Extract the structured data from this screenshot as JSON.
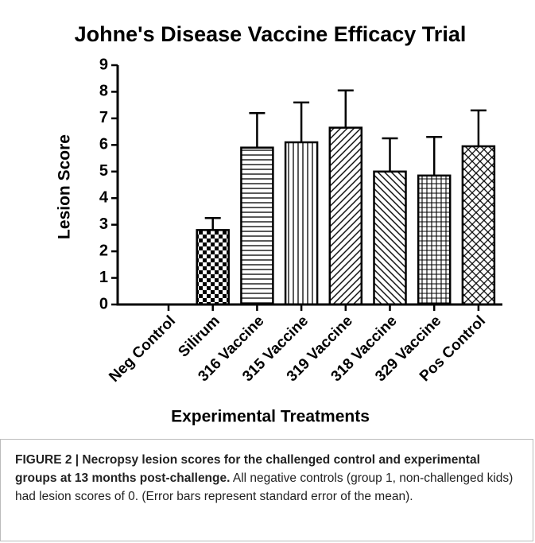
{
  "chart_data": {
    "type": "bar",
    "title": "Johne's Disease Vaccine Efficacy Trial",
    "xlabel": "Experimental Treatments",
    "ylabel": "Lesion Score",
    "categories": [
      "Neg Control",
      "Silirum",
      "316 Vaccine",
      "315 Vaccine",
      "319 Vaccine",
      "318 Vaccine",
      "329 Vaccine",
      "Pos Control"
    ],
    "values": [
      0,
      2.8,
      5.9,
      6.1,
      6.65,
      5.0,
      4.85,
      5.95
    ],
    "errors": [
      0,
      0.45,
      1.3,
      1.5,
      1.4,
      1.25,
      1.45,
      1.35
    ],
    "color": "#000000",
    "ylim": [
      0,
      9
    ],
    "yticks": [
      0,
      1,
      2,
      3,
      4,
      5,
      6,
      7,
      8,
      9
    ]
  },
  "caption": {
    "bold": "FIGURE 2 | Necropsy lesion scores for the challenged control and experimental groups at 13 months post-challenge.",
    "text": "All negative controls (group 1, non-challenged kids) had lesion scores of 0. (Error bars represent standard error of the mean)."
  }
}
